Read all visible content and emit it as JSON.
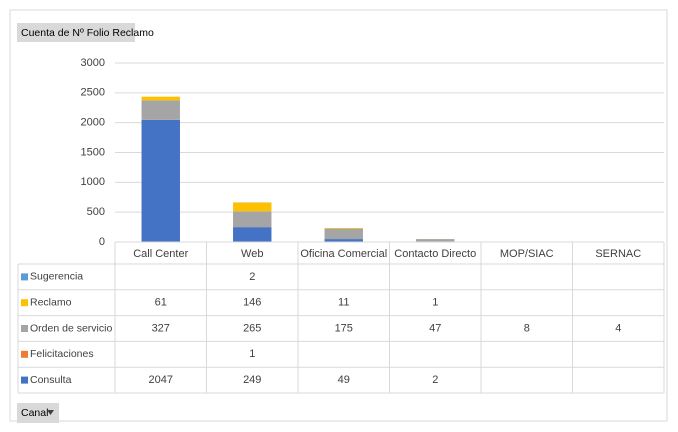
{
  "chart_data": {
    "type": "bar",
    "stacked": true,
    "title": "Cuenta de Nº Folio Reclamo",
    "filter_button": "Canal",
    "categories": [
      "Call Center",
      "Web",
      "Oficina Comercial",
      "Contacto Directo",
      "MOP/SIAC",
      "SERNAC"
    ],
    "series": [
      {
        "name": "Consulta",
        "color": "#4472c4",
        "values": [
          2047,
          249,
          49,
          2,
          null,
          null
        ]
      },
      {
        "name": "Felicitaciones",
        "color": "#ed7d31",
        "values": [
          null,
          1,
          null,
          null,
          null,
          null
        ]
      },
      {
        "name": "Orden de servicio",
        "color": "#a5a5a5",
        "values": [
          327,
          265,
          175,
          47,
          8,
          4
        ]
      },
      {
        "name": "Reclamo",
        "color": "#ffc000",
        "values": [
          61,
          146,
          11,
          1,
          null,
          null
        ]
      },
      {
        "name": "Sugerencia",
        "color": "#5b9bd5",
        "values": [
          null,
          2,
          null,
          null,
          null,
          null
        ]
      }
    ],
    "ylim": [
      0,
      3000
    ],
    "yticks": [
      0,
      500,
      1000,
      1500,
      2000,
      2500,
      3000
    ],
    "grid": true,
    "data_table": true
  }
}
